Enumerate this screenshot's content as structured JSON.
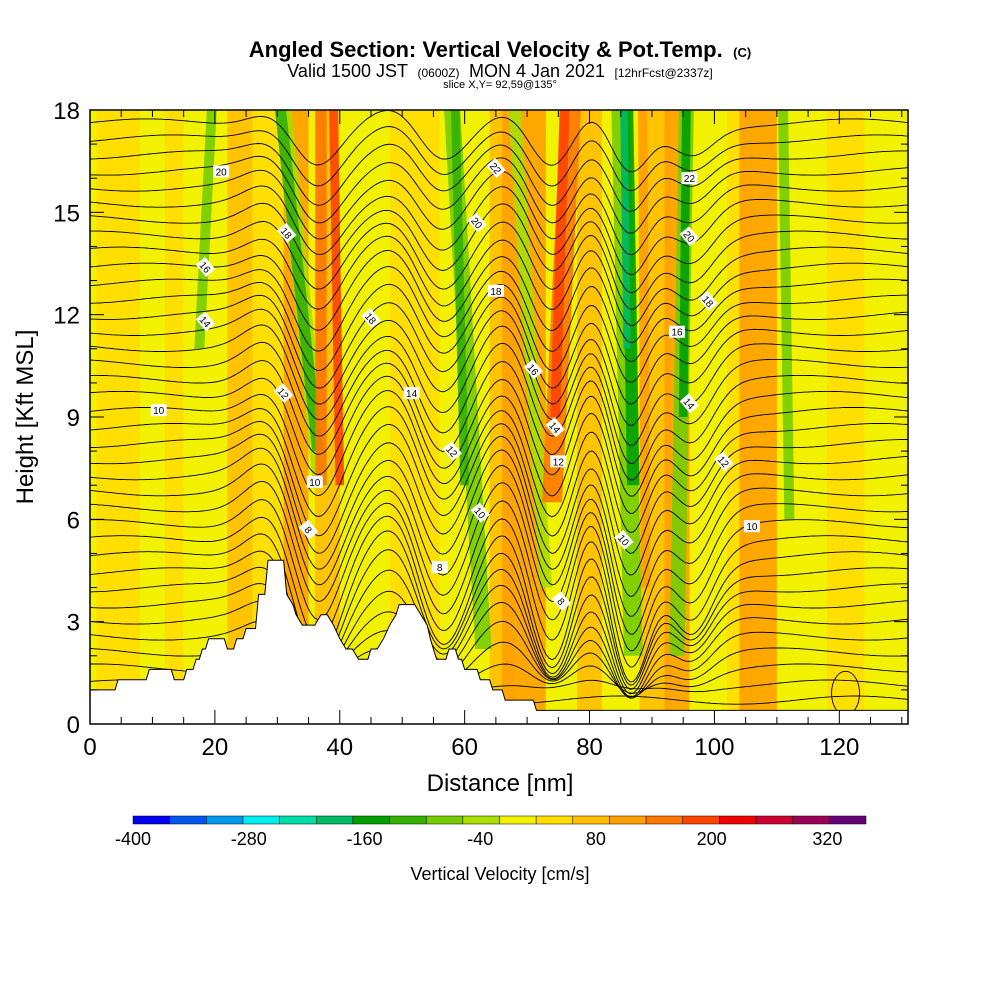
{
  "chart_data": {
    "type": "heatmap",
    "title": "Angled Section: Vertical Velocity & Pot.Temp.",
    "title_tag": "(C)",
    "subtitle": {
      "valid": "Valid 1500 JST",
      "utc": "(0600Z)",
      "date": "MON 4 Jan 2021",
      "forecast": "[12hrFcst@2337z]"
    },
    "slice_label": "slice X,Y= 92,59@135°",
    "xlabel": "Distance [nm]",
    "ylabel": "Height [Kft MSL]",
    "xlim": [
      0,
      131
    ],
    "ylim": [
      0,
      18
    ],
    "x_ticks": [
      0,
      20,
      40,
      60,
      80,
      100,
      120
    ],
    "y_ticks": [
      0,
      3,
      6,
      9,
      12,
      15,
      18
    ],
    "grid": false,
    "colorbar": {
      "label": "Vertical Velocity [cm/s]",
      "min": -400,
      "max": 360,
      "step": 40,
      "tick_labels": [
        -400,
        -280,
        -160,
        -40,
        80,
        200,
        320
      ],
      "colors": [
        "#0000ee",
        "#0055ee",
        "#0099ee",
        "#00eeee",
        "#00ddaa",
        "#00bb66",
        "#00a000",
        "#33b000",
        "#77cc00",
        "#aadd00",
        "#f2f200",
        "#ffdd00",
        "#ffc000",
        "#ffa000",
        "#ff7700",
        "#ff4400",
        "#ee0000",
        "#cc0033",
        "#990055",
        "#660077"
      ]
    },
    "contour_field": "Potential temperature",
    "contour_labels": [
      {
        "x": 11,
        "y": 9.2,
        "text": "10"
      },
      {
        "x": 18.5,
        "y": 13.4,
        "text": "16"
      },
      {
        "x": 18.5,
        "y": 11.8,
        "text": "14"
      },
      {
        "x": 21,
        "y": 16.2,
        "text": "20"
      },
      {
        "x": 31.5,
        "y": 14.4,
        "text": "18"
      },
      {
        "x": 31,
        "y": 9.7,
        "text": "12"
      },
      {
        "x": 36,
        "y": 7.1,
        "text": "10"
      },
      {
        "x": 35,
        "y": 5.7,
        "text": "8"
      },
      {
        "x": 45,
        "y": 11.9,
        "text": "18"
      },
      {
        "x": 51.5,
        "y": 9.7,
        "text": "14"
      },
      {
        "x": 58,
        "y": 8,
        "text": "12"
      },
      {
        "x": 62.5,
        "y": 6.2,
        "text": "10"
      },
      {
        "x": 56,
        "y": 4.6,
        "text": "8"
      },
      {
        "x": 62,
        "y": 14.7,
        "text": "20"
      },
      {
        "x": 65,
        "y": 16.3,
        "text": "22"
      },
      {
        "x": 65,
        "y": 12.7,
        "text": "18"
      },
      {
        "x": 71,
        "y": 10.4,
        "text": "16"
      },
      {
        "x": 74.5,
        "y": 8.7,
        "text": "14"
      },
      {
        "x": 75,
        "y": 7.7,
        "text": "12"
      },
      {
        "x": 75.5,
        "y": 3.6,
        "text": "8"
      },
      {
        "x": 85.5,
        "y": 5.4,
        "text": "10"
      },
      {
        "x": 96,
        "y": 16.0,
        "text": "22"
      },
      {
        "x": 96,
        "y": 14.3,
        "text": "20"
      },
      {
        "x": 99,
        "y": 12.4,
        "text": "18"
      },
      {
        "x": 94,
        "y": 11.5,
        "text": "16"
      },
      {
        "x": 96,
        "y": 9.4,
        "text": "14"
      },
      {
        "x": 101.5,
        "y": 7.7,
        "text": "12"
      },
      {
        "x": 106,
        "y": 5.8,
        "text": "10"
      }
    ],
    "terrain": [
      [
        0,
        1.0
      ],
      [
        4,
        1.0
      ],
      [
        4.5,
        1.3
      ],
      [
        9,
        1.3
      ],
      [
        9.5,
        1.6
      ],
      [
        13,
        1.6
      ],
      [
        13.5,
        1.3
      ],
      [
        15,
        1.3
      ],
      [
        15.5,
        1.6
      ],
      [
        16.5,
        1.6
      ],
      [
        17,
        1.9
      ],
      [
        17.5,
        1.9
      ],
      [
        18,
        2.2
      ],
      [
        18.5,
        2.2
      ],
      [
        19,
        2.5
      ],
      [
        21.5,
        2.5
      ],
      [
        22,
        2.2
      ],
      [
        23,
        2.2
      ],
      [
        23.5,
        2.5
      ],
      [
        24.5,
        2.5
      ],
      [
        25,
        2.8
      ],
      [
        26.5,
        2.8
      ],
      [
        27,
        3.8
      ],
      [
        28,
        3.8
      ],
      [
        28.5,
        4.8
      ],
      [
        31,
        4.8
      ],
      [
        31.5,
        3.8
      ],
      [
        32.5,
        3.5
      ],
      [
        33,
        3.2
      ],
      [
        34,
        2.9
      ],
      [
        36,
        2.9
      ],
      [
        37,
        3.2
      ],
      [
        38,
        3.2
      ],
      [
        39,
        2.9
      ],
      [
        40,
        2.5
      ],
      [
        41,
        2.2
      ],
      [
        42,
        2.2
      ],
      [
        43,
        1.9
      ],
      [
        44.5,
        1.9
      ],
      [
        45,
        2.2
      ],
      [
        46,
        2.2
      ],
      [
        47,
        2.5
      ],
      [
        48,
        2.9
      ],
      [
        49,
        3.2
      ],
      [
        49.5,
        3.5
      ],
      [
        52,
        3.5
      ],
      [
        53,
        3.2
      ],
      [
        54,
        2.9
      ],
      [
        54.5,
        2.5
      ],
      [
        55,
        2.2
      ],
      [
        55.5,
        1.9
      ],
      [
        57,
        1.9
      ],
      [
        57.5,
        2.2
      ],
      [
        58.5,
        2.2
      ],
      [
        59,
        1.9
      ],
      [
        59.5,
        1.9
      ],
      [
        60,
        1.6
      ],
      [
        62,
        1.6
      ],
      [
        62.5,
        1.3
      ],
      [
        64,
        1.3
      ],
      [
        64.5,
        1.0
      ],
      [
        66,
        1.0
      ],
      [
        66.5,
        0.7
      ],
      [
        71,
        0.7
      ],
      [
        71.5,
        0.4
      ],
      [
        131,
        0.4
      ]
    ]
  }
}
